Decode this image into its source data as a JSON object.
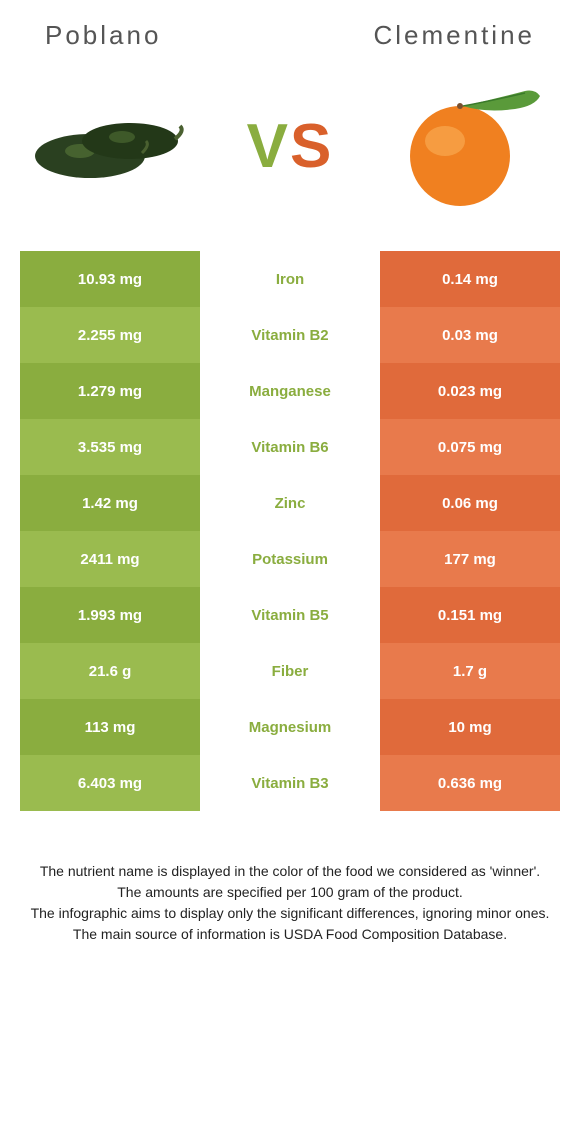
{
  "header": {
    "left": "Poblano",
    "right": "Clementine"
  },
  "vs": {
    "v": "V",
    "s": "S"
  },
  "colors": {
    "green_dark": "#8aad3f",
    "green_light": "#9abb4f",
    "orange_dark": "#e06a3b",
    "orange_light": "#e87a4c",
    "mid_text_green": "#8aad3f",
    "white": "#ffffff",
    "poblano_body": "#2a4020",
    "poblano_highlight": "#5a7a3a",
    "clementine_body": "#f08020",
    "clementine_highlight": "#f8a850",
    "leaf": "#5a9a3a"
  },
  "rows": [
    {
      "left": "10.93 mg",
      "mid": "Iron",
      "right": "0.14 mg"
    },
    {
      "left": "2.255 mg",
      "mid": "Vitamin B2",
      "right": "0.03 mg"
    },
    {
      "left": "1.279 mg",
      "mid": "Manganese",
      "right": "0.023 mg"
    },
    {
      "left": "3.535 mg",
      "mid": "Vitamin B6",
      "right": "0.075 mg"
    },
    {
      "left": "1.42 mg",
      "mid": "Zinc",
      "right": "0.06 mg"
    },
    {
      "left": "2411 mg",
      "mid": "Potassium",
      "right": "177 mg"
    },
    {
      "left": "1.993 mg",
      "mid": "Vitamin B5",
      "right": "0.151 mg"
    },
    {
      "left": "21.6 g",
      "mid": "Fiber",
      "right": "1.7 g"
    },
    {
      "left": "113 mg",
      "mid": "Magnesium",
      "right": "10 mg"
    },
    {
      "left": "6.403 mg",
      "mid": "Vitamin B3",
      "right": "0.636 mg"
    }
  ],
  "footer": {
    "line1": "The nutrient name is displayed in the color of the food we considered as 'winner'.",
    "line2": "The amounts are specified per 100 gram of the product.",
    "line3": "The infographic aims to display only the significant differences, ignoring minor ones.",
    "line4": "The main source of information is USDA Food Composition Database."
  }
}
